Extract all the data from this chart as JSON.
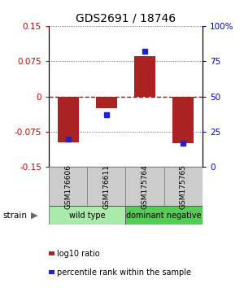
{
  "title": "GDS2691 / 18746",
  "samples": [
    "GSM176606",
    "GSM176611",
    "GSM175764",
    "GSM175765"
  ],
  "log10_ratio": [
    -0.098,
    -0.025,
    0.085,
    -0.1
  ],
  "percentile": [
    20,
    37,
    82,
    17
  ],
  "ylim": [
    -0.15,
    0.15
  ],
  "yticks": [
    -0.15,
    -0.075,
    0,
    0.075,
    0.15
  ],
  "ytick_labels": [
    "-0.15",
    "-0.075",
    "0",
    "0.075",
    "0.15"
  ],
  "right_yticks": [
    0,
    25,
    50,
    75,
    100
  ],
  "right_ytick_labels": [
    "0",
    "25",
    "50",
    "75",
    "100%"
  ],
  "groups": [
    {
      "label": "wild type",
      "samples": [
        0,
        1
      ],
      "color": "#aaeaaa"
    },
    {
      "label": "dominant negative",
      "samples": [
        2,
        3
      ],
      "color": "#55cc55"
    }
  ],
  "bar_color": "#aa2222",
  "dot_color": "#2222cc",
  "sample_box_color": "#cccccc",
  "background_color": "#ffffff",
  "zero_line_color": "#cc0000",
  "group_label": "strain"
}
